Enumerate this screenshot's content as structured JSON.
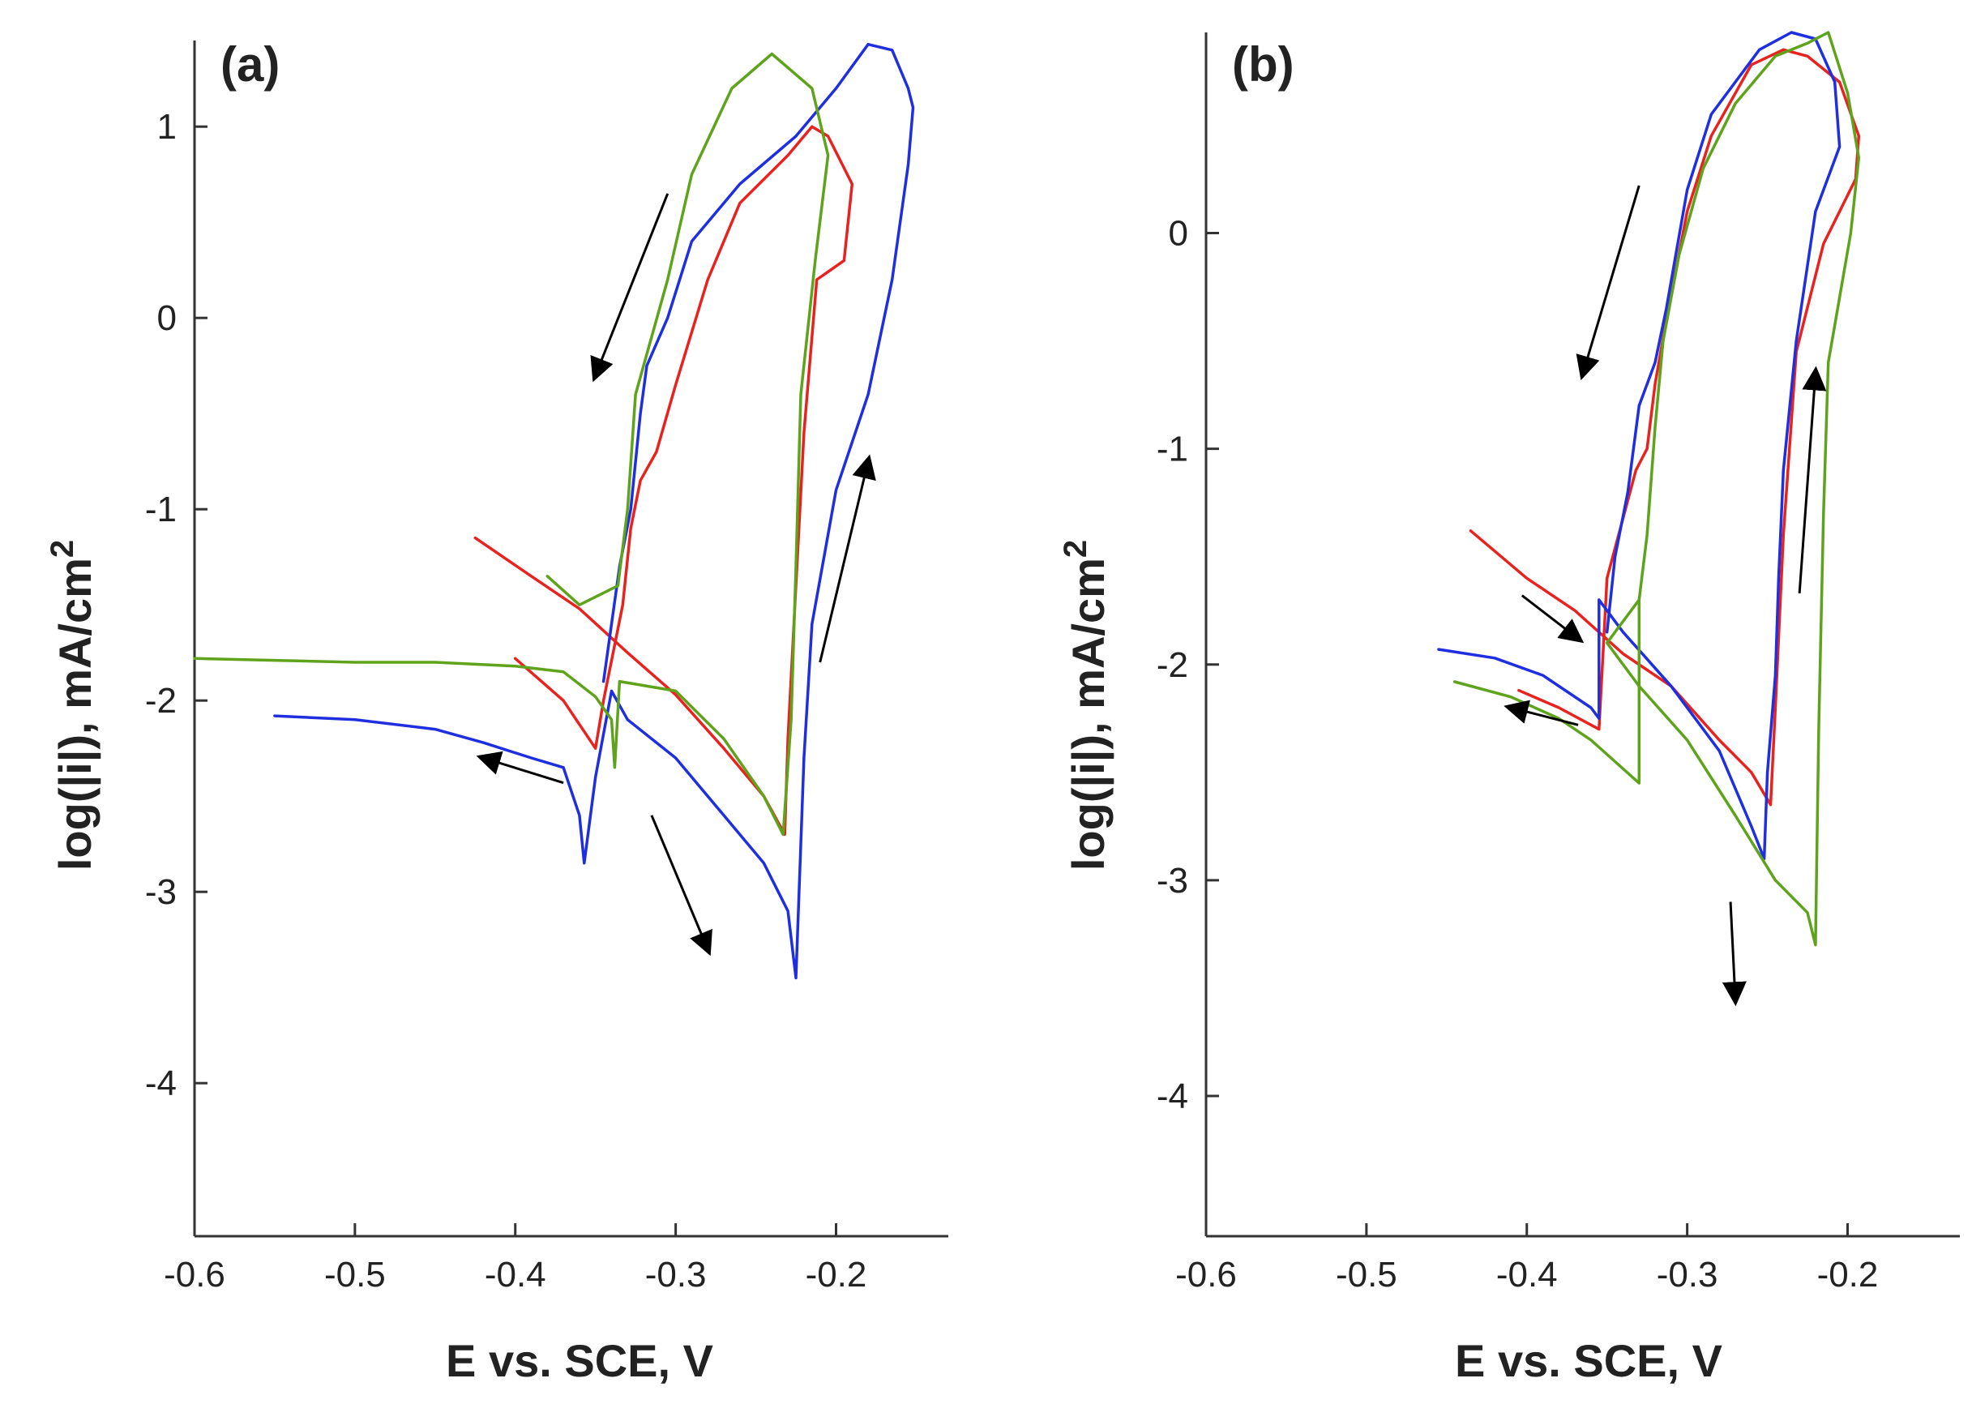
{
  "chart_data": [
    {
      "type": "line",
      "panel_label": "(a)",
      "xlabel": "E vs. SCE, V",
      "ylabel": "log(|i|), mA/cm",
      "ylabel_sup": "2",
      "xlim": [
        -0.6,
        -0.13
      ],
      "ylim": [
        -4.8,
        1.45
      ],
      "xticks": [
        -0.6,
        -0.5,
        -0.4,
        -0.3,
        -0.2
      ],
      "xtick_labels": [
        "-0.6",
        "-0.5",
        "-0.4",
        "-0.3",
        "-0.2"
      ],
      "yticks": [
        1,
        0,
        -1,
        -2,
        -3,
        -4
      ],
      "ytick_labels": [
        "1",
        "0",
        "-1",
        "-2",
        "-3",
        "-4"
      ],
      "legend": "none",
      "colors": {
        "red": "#e8231f",
        "blue": "#1f2fe0",
        "green": "#5fa31c",
        "arrow": "#000000"
      },
      "series": [
        {
          "color": "red",
          "points": [
            [
              -0.425,
              -1.15
            ],
            [
              -0.39,
              -1.35
            ],
            [
              -0.36,
              -1.52
            ],
            [
              -0.33,
              -1.75
            ],
            [
              -0.3,
              -1.97
            ],
            [
              -0.27,
              -2.25
            ],
            [
              -0.245,
              -2.5
            ],
            [
              -0.232,
              -2.7
            ],
            [
              -0.23,
              -2.2
            ],
            [
              -0.225,
              -1.4
            ],
            [
              -0.22,
              -0.6
            ],
            [
              -0.212,
              0.2
            ],
            [
              -0.195,
              0.3
            ],
            [
              -0.19,
              0.7
            ],
            [
              -0.205,
              0.95
            ],
            [
              -0.215,
              1.0
            ],
            [
              -0.23,
              0.85
            ],
            [
              -0.26,
              0.6
            ],
            [
              -0.28,
              0.2
            ],
            [
              -0.3,
              -0.35
            ],
            [
              -0.312,
              -0.7
            ],
            [
              -0.322,
              -0.85
            ],
            [
              -0.328,
              -1.1
            ],
            [
              -0.333,
              -1.5
            ],
            [
              -0.345,
              -2.0
            ],
            [
              -0.35,
              -2.25
            ],
            [
              -0.37,
              -2.0
            ],
            [
              -0.4,
              -1.78
            ]
          ]
        },
        {
          "color": "blue",
          "points": [
            [
              -0.55,
              -2.08
            ],
            [
              -0.5,
              -2.1
            ],
            [
              -0.45,
              -2.15
            ],
            [
              -0.42,
              -2.22
            ],
            [
              -0.39,
              -2.3
            ],
            [
              -0.37,
              -2.35
            ],
            [
              -0.36,
              -2.6
            ],
            [
              -0.357,
              -2.85
            ],
            [
              -0.35,
              -2.4
            ],
            [
              -0.34,
              -1.95
            ],
            [
              -0.33,
              -2.1
            ],
            [
              -0.3,
              -2.3
            ],
            [
              -0.27,
              -2.6
            ],
            [
              -0.245,
              -2.85
            ],
            [
              -0.23,
              -3.1
            ],
            [
              -0.225,
              -3.45
            ],
            [
              -0.22,
              -2.3
            ],
            [
              -0.215,
              -1.6
            ],
            [
              -0.2,
              -0.9
            ],
            [
              -0.18,
              -0.4
            ],
            [
              -0.165,
              0.2
            ],
            [
              -0.155,
              0.8
            ],
            [
              -0.152,
              1.1
            ],
            [
              -0.155,
              1.2
            ],
            [
              -0.165,
              1.4
            ],
            [
              -0.18,
              1.43
            ],
            [
              -0.2,
              1.2
            ],
            [
              -0.225,
              0.95
            ],
            [
              -0.26,
              0.7
            ],
            [
              -0.29,
              0.4
            ],
            [
              -0.305,
              0.0
            ],
            [
              -0.318,
              -0.25
            ],
            [
              -0.322,
              -0.5
            ],
            [
              -0.328,
              -1.0
            ],
            [
              -0.335,
              -1.3
            ],
            [
              -0.345,
              -1.9
            ]
          ]
        },
        {
          "color": "green",
          "points": [
            [
              -0.6,
              -1.78
            ],
            [
              -0.55,
              -1.79
            ],
            [
              -0.5,
              -1.8
            ],
            [
              -0.45,
              -1.8
            ],
            [
              -0.4,
              -1.82
            ],
            [
              -0.37,
              -1.85
            ],
            [
              -0.35,
              -1.98
            ],
            [
              -0.34,
              -2.1
            ],
            [
              -0.338,
              -2.35
            ],
            [
              -0.335,
              -1.9
            ],
            [
              -0.3,
              -1.95
            ],
            [
              -0.27,
              -2.2
            ],
            [
              -0.245,
              -2.5
            ],
            [
              -0.233,
              -2.7
            ],
            [
              -0.228,
              -2.1
            ],
            [
              -0.225,
              -1.3
            ],
            [
              -0.222,
              -0.4
            ],
            [
              -0.213,
              0.3
            ],
            [
              -0.205,
              0.85
            ],
            [
              -0.215,
              1.2
            ],
            [
              -0.24,
              1.38
            ],
            [
              -0.265,
              1.2
            ],
            [
              -0.29,
              0.75
            ],
            [
              -0.305,
              0.2
            ],
            [
              -0.315,
              -0.1
            ],
            [
              -0.325,
              -0.4
            ],
            [
              -0.33,
              -1.0
            ],
            [
              -0.336,
              -1.4
            ],
            [
              -0.36,
              -1.5
            ],
            [
              -0.38,
              -1.35
            ]
          ]
        }
      ],
      "arrows": [
        {
          "from": [
            -0.305,
            0.65
          ],
          "to": [
            -0.35,
            -0.3
          ]
        },
        {
          "from": [
            -0.21,
            -1.8
          ],
          "to": [
            -0.18,
            -0.75
          ]
        },
        {
          "from": [
            -0.37,
            -2.43
          ],
          "to": [
            -0.42,
            -2.3
          ]
        },
        {
          "from": [
            -0.315,
            -2.6
          ],
          "to": [
            -0.28,
            -3.3
          ]
        }
      ]
    },
    {
      "type": "line",
      "panel_label": "(b)",
      "xlabel": "E vs. SCE, V",
      "ylabel": "log(|i|), mA/cm",
      "ylabel_sup": "2",
      "xlim": [
        -0.6,
        -0.13
      ],
      "ylim": [
        -4.65,
        0.93
      ],
      "xticks": [
        -0.6,
        -0.5,
        -0.4,
        -0.3,
        -0.2
      ],
      "xtick_labels": [
        "-0.6",
        "-0.5",
        "-0.4",
        "-0.3",
        "-0.2"
      ],
      "yticks": [
        0,
        -1,
        -2,
        -3,
        -4
      ],
      "ytick_labels": [
        "0",
        "-1",
        "-2",
        "-3",
        "-4"
      ],
      "legend": "none",
      "colors": {
        "red": "#e8231f",
        "blue": "#1f2fe0",
        "green": "#5fa31c",
        "arrow": "#000000"
      },
      "series": [
        {
          "color": "red",
          "points": [
            [
              -0.435,
              -1.38
            ],
            [
              -0.4,
              -1.6
            ],
            [
              -0.37,
              -1.75
            ],
            [
              -0.34,
              -1.95
            ],
            [
              -0.31,
              -2.1
            ],
            [
              -0.28,
              -2.35
            ],
            [
              -0.26,
              -2.5
            ],
            [
              -0.248,
              -2.65
            ],
            [
              -0.245,
              -2.2
            ],
            [
              -0.24,
              -1.4
            ],
            [
              -0.232,
              -0.55
            ],
            [
              -0.215,
              -0.05
            ],
            [
              -0.195,
              0.25
            ],
            [
              -0.193,
              0.45
            ],
            [
              -0.205,
              0.7
            ],
            [
              -0.225,
              0.82
            ],
            [
              -0.24,
              0.85
            ],
            [
              -0.26,
              0.78
            ],
            [
              -0.285,
              0.45
            ],
            [
              -0.3,
              0.1
            ],
            [
              -0.313,
              -0.4
            ],
            [
              -0.32,
              -0.7
            ],
            [
              -0.325,
              -1.0
            ],
            [
              -0.332,
              -1.1
            ],
            [
              -0.35,
              -1.6
            ],
            [
              -0.355,
              -2.3
            ],
            [
              -0.38,
              -2.2
            ],
            [
              -0.405,
              -2.12
            ]
          ]
        },
        {
          "color": "blue",
          "points": [
            [
              -0.455,
              -1.93
            ],
            [
              -0.42,
              -1.97
            ],
            [
              -0.39,
              -2.05
            ],
            [
              -0.36,
              -2.2
            ],
            [
              -0.355,
              -2.25
            ],
            [
              -0.355,
              -1.7
            ],
            [
              -0.34,
              -1.85
            ],
            [
              -0.31,
              -2.1
            ],
            [
              -0.28,
              -2.4
            ],
            [
              -0.26,
              -2.75
            ],
            [
              -0.252,
              -2.9
            ],
            [
              -0.25,
              -2.5
            ],
            [
              -0.245,
              -2.05
            ],
            [
              -0.243,
              -1.6
            ],
            [
              -0.24,
              -1.1
            ],
            [
              -0.232,
              -0.5
            ],
            [
              -0.22,
              0.1
            ],
            [
              -0.205,
              0.4
            ],
            [
              -0.208,
              0.7
            ],
            [
              -0.22,
              0.9
            ],
            [
              -0.235,
              0.93
            ],
            [
              -0.255,
              0.85
            ],
            [
              -0.285,
              0.55
            ],
            [
              -0.3,
              0.2
            ],
            [
              -0.313,
              -0.35
            ],
            [
              -0.32,
              -0.6
            ],
            [
              -0.33,
              -0.8
            ],
            [
              -0.337,
              -1.2
            ],
            [
              -0.345,
              -1.5
            ],
            [
              -0.35,
              -1.85
            ]
          ]
        },
        {
          "color": "green",
          "points": [
            [
              -0.445,
              -2.08
            ],
            [
              -0.41,
              -2.15
            ],
            [
              -0.38,
              -2.25
            ],
            [
              -0.36,
              -2.35
            ],
            [
              -0.345,
              -2.45
            ],
            [
              -0.33,
              -2.55
            ],
            [
              -0.33,
              -1.7
            ],
            [
              -0.35,
              -1.9
            ],
            [
              -0.33,
              -2.1
            ],
            [
              -0.3,
              -2.35
            ],
            [
              -0.27,
              -2.7
            ],
            [
              -0.245,
              -3.0
            ],
            [
              -0.225,
              -3.15
            ],
            [
              -0.22,
              -3.3
            ],
            [
              -0.218,
              -2.3
            ],
            [
              -0.215,
              -1.3
            ],
            [
              -0.212,
              -0.6
            ],
            [
              -0.198,
              0.0
            ],
            [
              -0.193,
              0.35
            ],
            [
              -0.2,
              0.65
            ],
            [
              -0.212,
              0.93
            ],
            [
              -0.225,
              0.88
            ],
            [
              -0.245,
              0.82
            ],
            [
              -0.27,
              0.6
            ],
            [
              -0.29,
              0.3
            ],
            [
              -0.305,
              -0.1
            ],
            [
              -0.315,
              -0.5
            ],
            [
              -0.32,
              -0.9
            ],
            [
              -0.325,
              -1.4
            ],
            [
              -0.33,
              -1.7
            ]
          ]
        }
      ],
      "arrows": [
        {
          "from": [
            -0.33,
            0.22
          ],
          "to": [
            -0.365,
            -0.65
          ]
        },
        {
          "from": [
            -0.23,
            -1.67
          ],
          "to": [
            -0.22,
            -0.65
          ]
        },
        {
          "from": [
            -0.403,
            -1.68
          ],
          "to": [
            -0.368,
            -1.88
          ]
        },
        {
          "from": [
            -0.368,
            -2.28
          ],
          "to": [
            -0.41,
            -2.2
          ]
        },
        {
          "from": [
            -0.273,
            -3.1
          ],
          "to": [
            -0.27,
            -3.55
          ]
        }
      ]
    }
  ]
}
